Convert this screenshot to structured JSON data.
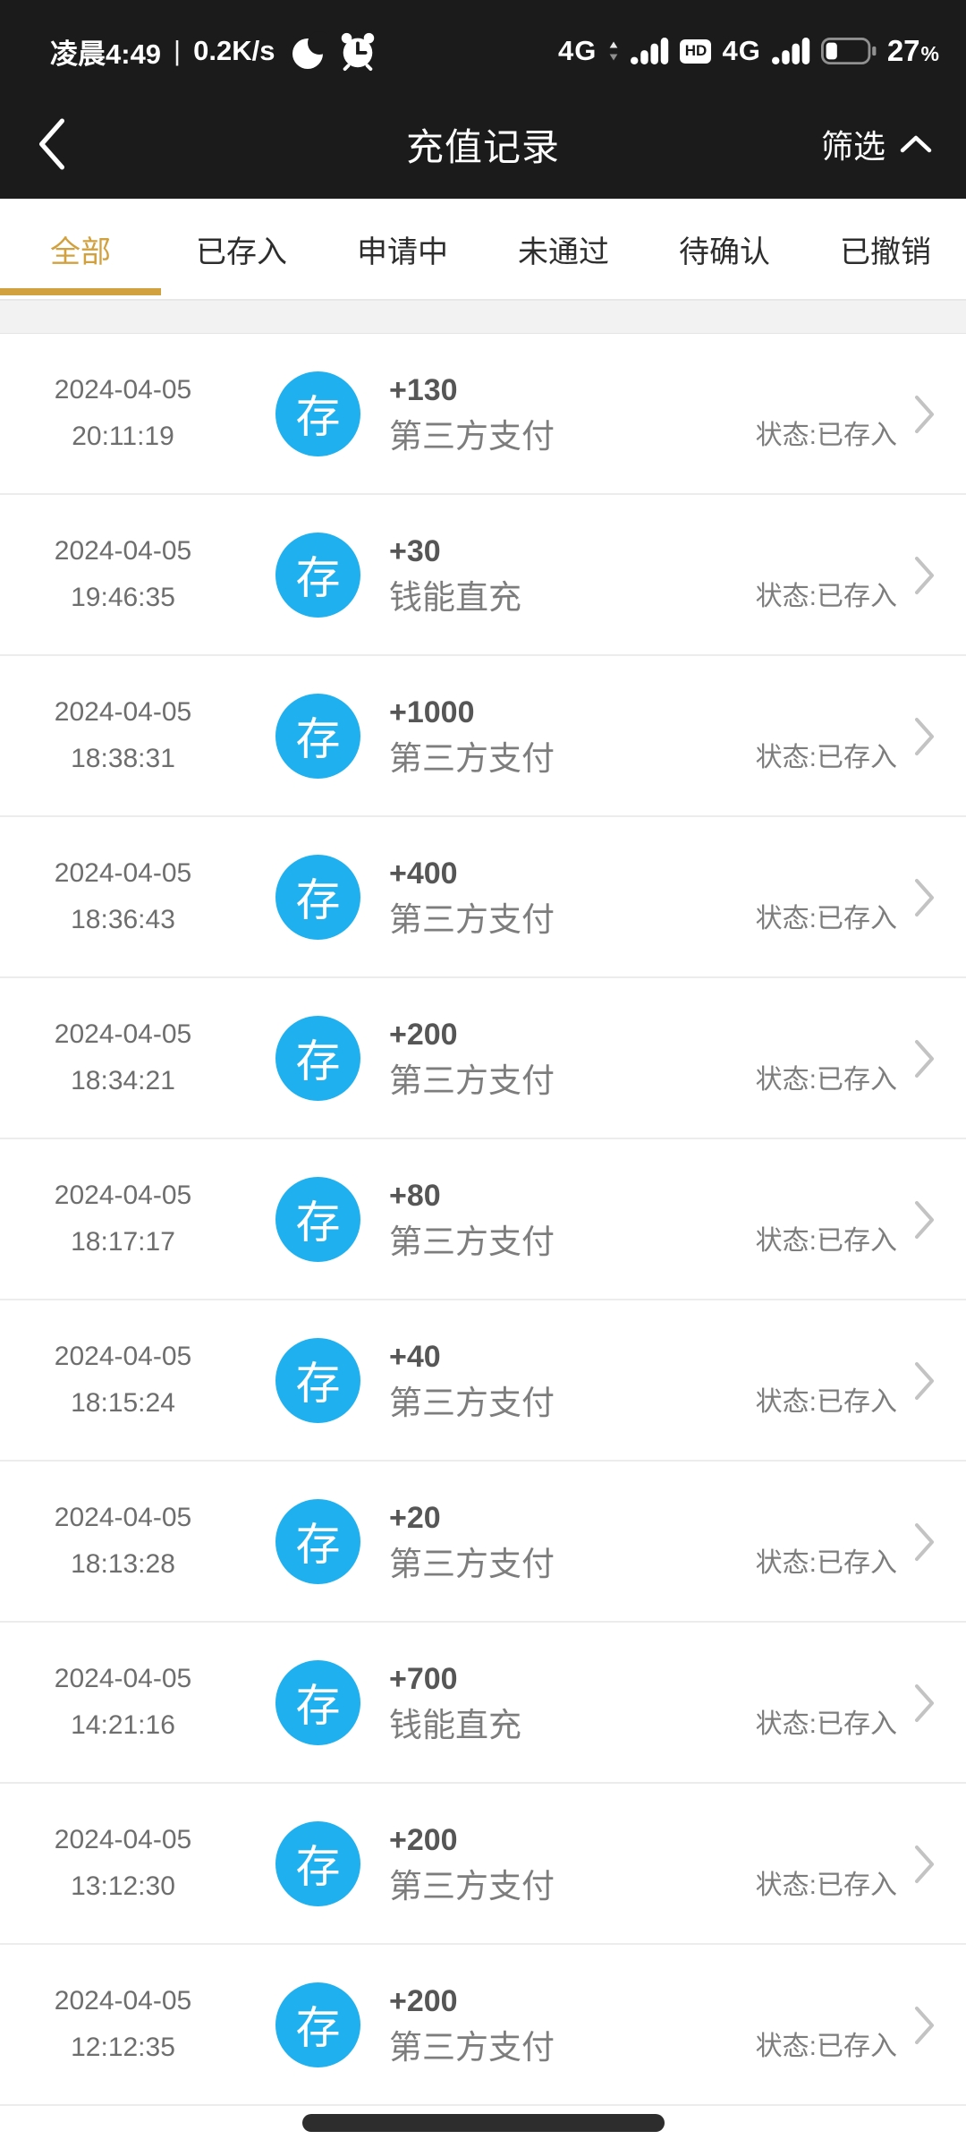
{
  "colors": {
    "topbar_bg": "#1b1b1b",
    "accent": "#d2a13f",
    "badge_blue": "#1fb0f0",
    "pill": "#2d2d2d"
  },
  "status_bar": {
    "time": "凌晨4:49",
    "divider": "|",
    "net_speed": "0.2K/s",
    "sim1_label": "4G",
    "hd_label": "HD",
    "sim2_label": "4G",
    "battery_value": "27",
    "battery_unit": "%",
    "battery_level": 27
  },
  "header": {
    "title": "充值记录",
    "filter_label": "筛选"
  },
  "tabs": [
    {
      "label": "全部",
      "active": true
    },
    {
      "label": "已存入",
      "active": false
    },
    {
      "label": "申请中",
      "active": false
    },
    {
      "label": "未通过",
      "active": false
    },
    {
      "label": "待确认",
      "active": false
    },
    {
      "label": "已撤销",
      "active": false
    }
  ],
  "records": [
    {
      "date": "2024-04-05",
      "time": "20:11:19",
      "badge": "存",
      "amount": "+130",
      "method": "第三方支付",
      "status": "状态:已存入"
    },
    {
      "date": "2024-04-05",
      "time": "19:46:35",
      "badge": "存",
      "amount": "+30",
      "method": "钱能直充",
      "status": "状态:已存入"
    },
    {
      "date": "2024-04-05",
      "time": "18:38:31",
      "badge": "存",
      "amount": "+1000",
      "method": "第三方支付",
      "status": "状态:已存入"
    },
    {
      "date": "2024-04-05",
      "time": "18:36:43",
      "badge": "存",
      "amount": "+400",
      "method": "第三方支付",
      "status": "状态:已存入"
    },
    {
      "date": "2024-04-05",
      "time": "18:34:21",
      "badge": "存",
      "amount": "+200",
      "method": "第三方支付",
      "status": "状态:已存入"
    },
    {
      "date": "2024-04-05",
      "time": "18:17:17",
      "badge": "存",
      "amount": "+80",
      "method": "第三方支付",
      "status": "状态:已存入"
    },
    {
      "date": "2024-04-05",
      "time": "18:15:24",
      "badge": "存",
      "amount": "+40",
      "method": "第三方支付",
      "status": "状态:已存入"
    },
    {
      "date": "2024-04-05",
      "time": "18:13:28",
      "badge": "存",
      "amount": "+20",
      "method": "第三方支付",
      "status": "状态:已存入"
    },
    {
      "date": "2024-04-05",
      "time": "14:21:16",
      "badge": "存",
      "amount": "+700",
      "method": "钱能直充",
      "status": "状态:已存入"
    },
    {
      "date": "2024-04-05",
      "time": "13:12:30",
      "badge": "存",
      "amount": "+200",
      "method": "第三方支付",
      "status": "状态:已存入"
    },
    {
      "date": "2024-04-05",
      "time": "12:12:35",
      "badge": "存",
      "amount": "+200",
      "method": "第三方支付",
      "status": "状态:已存入"
    }
  ]
}
